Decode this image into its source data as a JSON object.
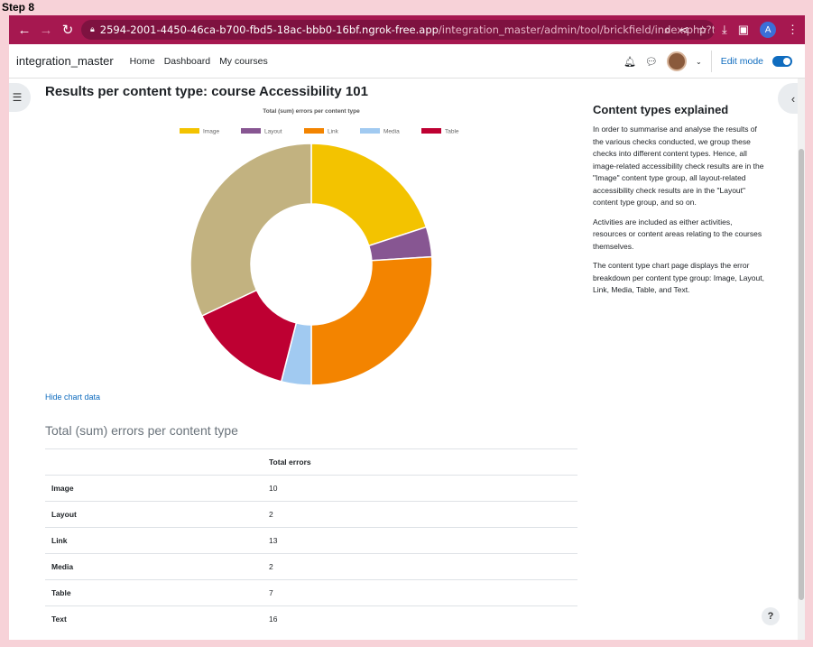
{
  "step_label": "Step 8",
  "browser": {
    "url_host": "2594-2001-4450-46ca-b700-fbd5-18ac-bbb0-16bf.ngrok-free.app",
    "url_path": "/integration_master/admin/tool/brickfield/index.php?tab=check...",
    "profile_initial": "A"
  },
  "navbar": {
    "brand": "integration_master",
    "links": [
      "Home",
      "Dashboard",
      "My courses"
    ],
    "edit_mode_label": "Edit mode"
  },
  "page": {
    "title": "Results per content type: course Accessibility 101",
    "hide_chart_link": "Hide chart data",
    "table_heading": "Total (sum) errors per content type",
    "table_column_header": "Total errors"
  },
  "chart_data": {
    "type": "pie",
    "title": "Total (sum) errors per content type",
    "categories": [
      "Image",
      "Layout",
      "Link",
      "Media",
      "Table",
      "Text"
    ],
    "values": [
      10,
      2,
      13,
      2,
      7,
      16
    ],
    "colors": [
      "#f3c300",
      "#875692",
      "#f38400",
      "#a1caf1",
      "#be0032",
      "#c2b280"
    ],
    "legend_position": "top"
  },
  "table_rows": [
    {
      "label": "Image",
      "value": "10"
    },
    {
      "label": "Layout",
      "value": "2"
    },
    {
      "label": "Link",
      "value": "13"
    },
    {
      "label": "Media",
      "value": "2"
    },
    {
      "label": "Table",
      "value": "7"
    },
    {
      "label": "Text",
      "value": "16"
    }
  ],
  "side_panel": {
    "title": "Content types explained",
    "paragraphs": [
      "In order to summarise and analyse the results of the various checks conducted, we group these checks into different content types. Hence, all image-related accessibility check results are in the \"Image\" content type group, all layout-related accessibility check results are in the \"Layout\" content type group, and so on.",
      "Activities are included as either activities, resources or content areas relating to the courses themselves.",
      "The content type chart page displays the error breakdown per content type group: Image, Layout, Link, Media, Table, and Text."
    ]
  },
  "help_label": "?"
}
